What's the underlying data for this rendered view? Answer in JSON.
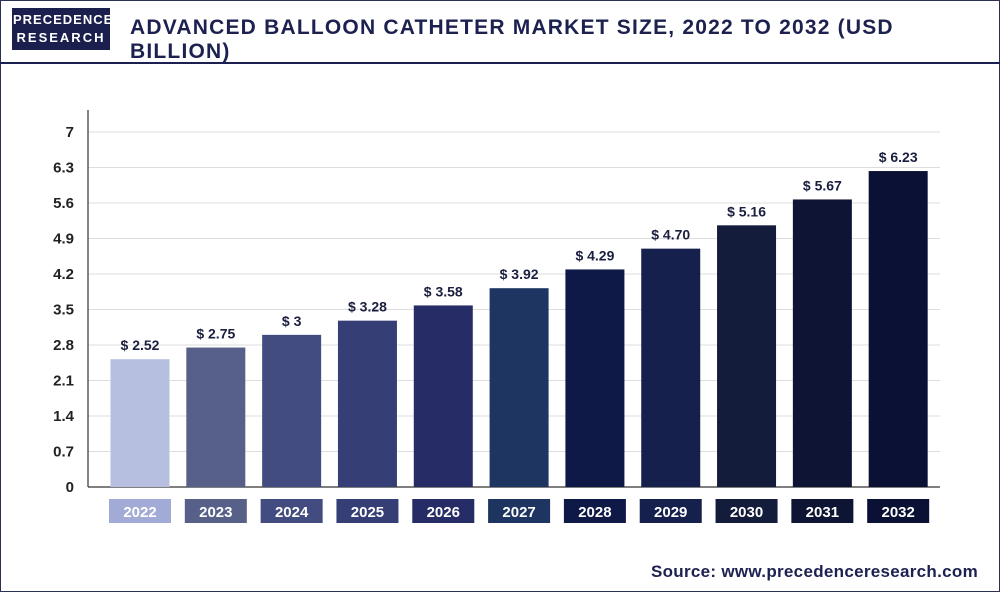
{
  "header": {
    "logo_line1": "PRECEDENCE",
    "logo_line2": "RESEARCH",
    "title": "ADVANCED BALLOON CATHETER MARKET SIZE, 2022 TO 2032 (USD BILLION)"
  },
  "footer": {
    "source": "Source: www.precedenceresearch.com"
  },
  "chart_data": {
    "type": "bar",
    "title": "ADVANCED BALLOON CATHETER MARKET SIZE, 2022 TO 2032 (USD BILLION)",
    "categories": [
      "2022",
      "2023",
      "2024",
      "2025",
      "2026",
      "2027",
      "2028",
      "2029",
      "2030",
      "2031",
      "2032"
    ],
    "values": [
      2.52,
      2.75,
      3,
      3.28,
      3.58,
      3.92,
      4.29,
      4.7,
      5.16,
      5.67,
      6.23
    ],
    "value_labels": [
      "$ 2.52",
      "$ 2.75",
      "$ 3",
      "$ 3.28",
      "$ 3.58",
      "$ 3.92",
      "$ 4.29",
      "$ 4.70",
      "$ 5.16",
      "$ 5.67",
      "$ 6.23"
    ],
    "yticks": [
      "0",
      "0.7",
      "1.4",
      "2.1",
      "2.8",
      "3.5",
      "4.2",
      "4.9",
      "5.6",
      "6.3",
      "7"
    ],
    "ylim": [
      0,
      7
    ],
    "grid": true,
    "colors": [
      "#b7bfe0",
      "#566089",
      "#434c80",
      "#363f75",
      "#262d66",
      "#1e3461",
      "#0f1948",
      "#15204c",
      "#141c3c",
      "#0e1433",
      "#0b1035"
    ],
    "category_box_colors": [
      "#a2aad6",
      "#566089",
      "#434c80",
      "#363f75",
      "#262d66",
      "#1e3461",
      "#0f1948",
      "#15204c",
      "#141c3c",
      "#0e1433",
      "#0b1035"
    ]
  }
}
